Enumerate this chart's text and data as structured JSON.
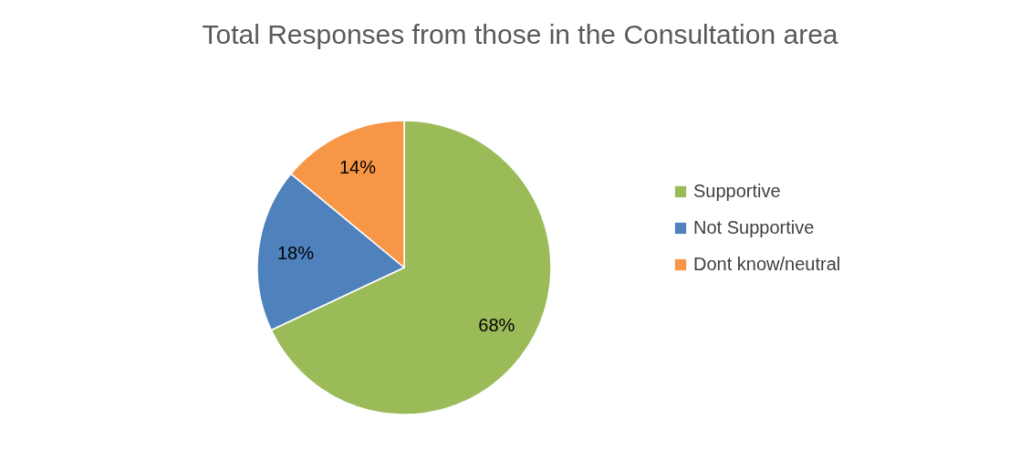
{
  "chart_data": {
    "type": "pie",
    "title": "Total Responses from those in the Consultation area",
    "categories": [
      "Supportive",
      "Not Supportive",
      "Dont know/neutral"
    ],
    "values": [
      68,
      18,
      14
    ],
    "colors": [
      "#9bbb59",
      "#4f81bd",
      "#f79646"
    ],
    "value_labels": [
      "68%",
      "18%",
      "14%"
    ],
    "legend": "right"
  }
}
